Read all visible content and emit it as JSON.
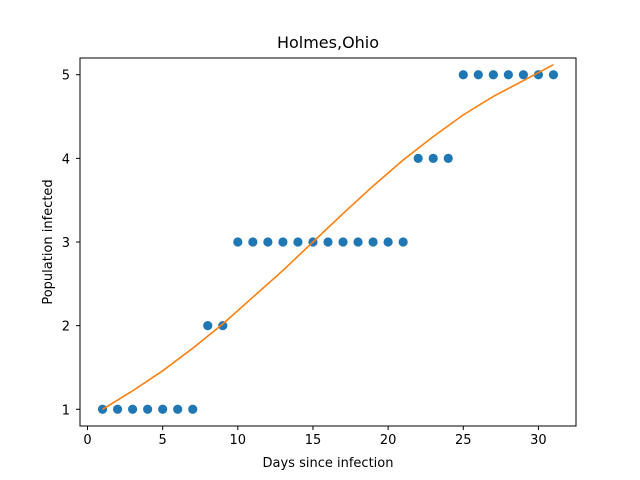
{
  "chart_data": {
    "type": "scatter",
    "title": "Holmes,Ohio",
    "xlabel": "Days since infection",
    "ylabel": "Population infected",
    "xlim": [
      -0.5,
      32.5
    ],
    "ylim": [
      0.8,
      5.2
    ],
    "xticks": [
      0,
      5,
      10,
      15,
      20,
      25,
      30
    ],
    "yticks": [
      1,
      2,
      3,
      4,
      5
    ],
    "grid": false,
    "series": [
      {
        "type": "scatter",
        "color": "#1f77b4",
        "x": [
          1,
          2,
          3,
          4,
          5,
          6,
          7,
          8,
          9,
          10,
          11,
          12,
          13,
          14,
          15,
          16,
          17,
          18,
          19,
          20,
          21,
          22,
          23,
          24,
          25,
          26,
          27,
          28,
          29,
          30,
          31
        ],
        "y": [
          1,
          1,
          1,
          1,
          1,
          1,
          1,
          2,
          2,
          3,
          3,
          3,
          3,
          3,
          3,
          3,
          3,
          3,
          3,
          3,
          3,
          4,
          4,
          4,
          5,
          5,
          5,
          5,
          5,
          5,
          5
        ]
      },
      {
        "type": "line",
        "color": "#ff7f0e",
        "x": [
          1,
          3,
          5,
          7,
          9,
          11,
          13,
          15,
          17,
          19,
          21,
          23,
          25,
          27,
          29,
          31
        ],
        "y": [
          1.0,
          1.22,
          1.46,
          1.73,
          2.02,
          2.34,
          2.66,
          3.0,
          3.34,
          3.67,
          3.98,
          4.26,
          4.52,
          4.74,
          4.93,
          5.12
        ]
      }
    ]
  }
}
